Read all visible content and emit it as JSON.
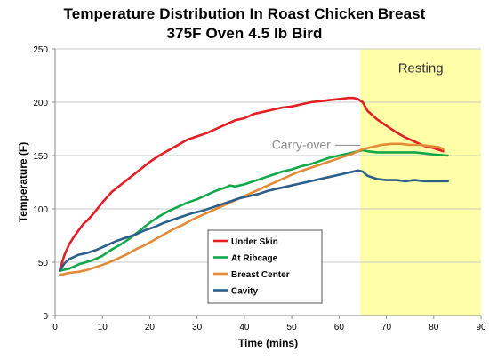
{
  "chart_data": {
    "type": "line",
    "title": "Temperature Distribution In Roast Chicken Breast",
    "subtitle": "375F Oven 4.5 lb Bird",
    "xlabel": "Time (mins)",
    "ylabel": "Temperature  (F)",
    "xlim": [
      0,
      90
    ],
    "ylim": [
      0,
      250
    ],
    "xticks": [
      0,
      10,
      20,
      30,
      40,
      50,
      60,
      70,
      80,
      90
    ],
    "yticks": [
      0,
      50,
      100,
      150,
      200,
      250
    ],
    "grid": "horizontal",
    "legend_position": "lower-left",
    "shaded_region": {
      "label": "Resting",
      "x_start": 64.5,
      "x_end": 90,
      "color": "#ffffa8"
    },
    "annotations": [
      {
        "text": "Carry-over",
        "x": 52,
        "y": 158,
        "color": "#8c8c8c"
      }
    ],
    "series": [
      {
        "name": "Under Skin",
        "color": "#e31e24",
        "x": [
          1,
          2,
          3,
          4,
          5,
          6,
          7,
          8,
          10,
          12,
          14,
          16,
          18,
          20,
          22,
          24,
          26,
          28,
          30,
          32,
          34,
          36,
          38,
          40,
          42,
          44,
          46,
          48,
          50,
          52,
          54,
          56,
          58,
          60,
          62,
          63,
          64,
          65,
          66,
          68,
          70,
          72,
          74,
          76,
          78,
          80,
          82
        ],
        "y": [
          43,
          57,
          67,
          74,
          80,
          86,
          90,
          95,
          106,
          116,
          123,
          130,
          137,
          144,
          150,
          155,
          160,
          165,
          168,
          171,
          175,
          179,
          183,
          185,
          189,
          191,
          193,
          195,
          196,
          198,
          200,
          201,
          202,
          203,
          204,
          204,
          203,
          200,
          192,
          184,
          178,
          172,
          167,
          163,
          159,
          157,
          154
        ]
      },
      {
        "name": "At Ribcage",
        "color": "#12a94a",
        "x": [
          1,
          3,
          5,
          8,
          10,
          12,
          14,
          16,
          18,
          20,
          22,
          24,
          26,
          28,
          30,
          32,
          34,
          36,
          37,
          38,
          40,
          42,
          44,
          46,
          48,
          50,
          52,
          54,
          56,
          58,
          60,
          62,
          64,
          65,
          66,
          68,
          70,
          72,
          74,
          76,
          78,
          80,
          83
        ],
        "y": [
          42,
          44,
          48,
          52,
          56,
          62,
          67,
          73,
          80,
          87,
          93,
          98,
          102,
          106,
          109,
          113,
          117,
          120,
          122,
          121,
          123,
          126,
          129,
          132,
          135,
          137,
          140,
          142,
          145,
          148,
          150,
          152,
          154,
          155,
          154,
          153,
          153,
          153,
          153,
          153,
          152,
          151,
          150
        ]
      },
      {
        "name": "Breast Center",
        "color": "#e38a34",
        "x": [
          1,
          3,
          5,
          7,
          9,
          11,
          13,
          15,
          17,
          19,
          21,
          23,
          25,
          27,
          29,
          31,
          33,
          35,
          37,
          39,
          41,
          43,
          45,
          47,
          49,
          51,
          53,
          55,
          57,
          59,
          61,
          63,
          65,
          67,
          69,
          71,
          73,
          75,
          77,
          79,
          81,
          82
        ],
        "y": [
          38,
          40,
          41,
          43,
          46,
          49,
          53,
          57,
          62,
          66,
          71,
          76,
          81,
          85,
          90,
          94,
          98,
          102,
          106,
          110,
          114,
          118,
          122,
          126,
          130,
          134,
          137,
          140,
          143,
          146,
          149,
          152,
          156,
          158,
          160,
          161,
          161,
          160,
          160,
          159,
          158,
          156
        ]
      },
      {
        "name": "Cavity",
        "color": "#2c5f8a",
        "x": [
          1,
          2,
          3,
          5,
          7,
          9,
          11,
          13,
          15,
          17,
          19,
          21,
          23,
          25,
          27,
          29,
          31,
          33,
          35,
          37,
          39,
          41,
          43,
          45,
          47,
          49,
          51,
          53,
          55,
          57,
          59,
          61,
          63,
          64,
          65,
          66,
          68,
          70,
          72,
          74,
          76,
          78,
          80,
          83
        ],
        "y": [
          42,
          49,
          53,
          57,
          59,
          62,
          66,
          70,
          73,
          76,
          80,
          83,
          87,
          90,
          93,
          96,
          98,
          101,
          104,
          107,
          110,
          112,
          114,
          117,
          119,
          121,
          123,
          125,
          127,
          129,
          131,
          133,
          135,
          136,
          135,
          131,
          128,
          127,
          127,
          126,
          127,
          126,
          126,
          126
        ]
      }
    ]
  }
}
